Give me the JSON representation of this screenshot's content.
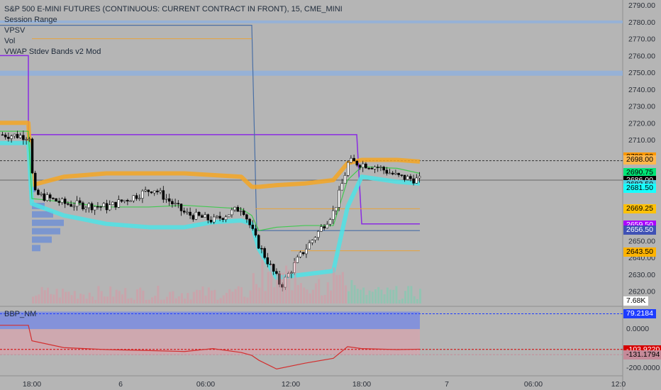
{
  "title": "S&P 500 E-MINI FUTURES (CONTINUOUS: CURRENT CONTRACT IN FRONT), 15, CME_MINI",
  "indicators": [
    "Session Range",
    "VPSV",
    "Vol",
    "VWAP Stdev Bands v2 Mod"
  ],
  "sub_indicator": "BBP_NM",
  "colors": {
    "background": "#b5b5b5",
    "up_candle": "#ffffff",
    "down_candle": "#000000",
    "vwap_upper": "#f5a623",
    "vwap_lower": "#4de3e6",
    "vwap_mid": "#2ecc40",
    "session_range": "#8a2be2",
    "vpsv_line": "#4a6fa5",
    "level_line": "#e8a33a",
    "bbp_line": "#d32f2f",
    "bbp_upper_fill": "#7b8ce0",
    "bbp_lower_fill": "#d9a3ad"
  },
  "price_tags": [
    {
      "label": "2700.00",
      "bg": "#ff9800",
      "fg": "#000000"
    },
    {
      "label": "2698.00",
      "bg": "#ffb74d",
      "fg": "#000000"
    },
    {
      "label": "2690.75",
      "bg": "#00e676",
      "fg": "#000000"
    },
    {
      "label": "2686.00",
      "bg": "#000000",
      "fg": "#ffffff"
    },
    {
      "label": "2683.50",
      "bg": "#4dd0e1",
      "fg": "#000000"
    },
    {
      "label": "2681.50",
      "bg": "#18ffff",
      "fg": "#000000"
    },
    {
      "label": "2669.25",
      "bg": "#ffc107",
      "fg": "#000000"
    },
    {
      "label": "2659.50",
      "bg": "#aa00ff",
      "fg": "#ffffff"
    },
    {
      "label": "2656.50",
      "bg": "#3f51b5",
      "fg": "#ffffff"
    },
    {
      "label": "2643.50",
      "bg": "#ffb300",
      "fg": "#000000"
    },
    {
      "label": "7.68K",
      "bg": "#ffffff",
      "fg": "#000000"
    }
  ],
  "sub_tags": [
    {
      "label": "79.2184",
      "bg": "#1e3cff",
      "fg": "#ffffff"
    },
    {
      "label": "0.0000",
      "bg": "",
      "fg": "#2a2f38"
    },
    {
      "label": "-103.9220",
      "bg": "#d50000",
      "fg": "#ffffff"
    },
    {
      "label": "-131.1794",
      "bg": "#c58a99",
      "fg": "#000000"
    },
    {
      "label": "-200.0000",
      "bg": "",
      "fg": "#2a2f38"
    }
  ],
  "chart_data": {
    "type": "candlestick",
    "y_ticks": [
      "2790.00",
      "2780.00",
      "2770.00",
      "2760.00",
      "2750.00",
      "2740.00",
      "2730.00",
      "2720.00",
      "2710.00",
      "2700.00",
      "2690.00",
      "2680.00",
      "2670.00",
      "2660.00",
      "2650.00",
      "2640.00",
      "2630.00",
      "2620.00"
    ],
    "x_ticks": [
      "18:00",
      "6",
      "06:00",
      "12:00",
      "18:00",
      "7",
      "06:00",
      "12:0"
    ],
    "ylim": [
      2611,
      2793
    ],
    "sub_ylim": [
      -240,
      110
    ],
    "levels": [
      {
        "name": "blue-level-high",
        "value": 2780
      },
      {
        "name": "blue-level-zone",
        "value": 2749.5
      },
      {
        "name": "current-price",
        "value": 2686
      },
      {
        "name": "dashed-level",
        "value": 2697.5
      }
    ],
    "vwap": {
      "upper": [
        2720,
        2720,
        2683,
        2688,
        2690,
        2690,
        2690,
        2689,
        2688,
        2682,
        2682,
        2683,
        2684,
        2686,
        2696,
        2698,
        2698,
        2697
      ],
      "mid": [
        2715,
        2715,
        2675,
        2673,
        2670,
        2670,
        2671,
        2670,
        2669,
        2665,
        2656,
        2658,
        2659,
        2659,
        2686,
        2694,
        2693,
        2690
      ],
      "lower": [
        2708,
        2708,
        2672,
        2665,
        2660,
        2658,
        2658,
        2661,
        2662,
        2660,
        2645,
        2628,
        2630,
        2632,
        2670,
        2688,
        2685,
        2684
      ]
    },
    "bbp": [
      20,
      20,
      -60,
      -95,
      -105,
      -110,
      -115,
      -100,
      -120,
      -135,
      -160,
      -205,
      -175,
      -150,
      -90,
      -100,
      -105,
      -103
    ]
  }
}
